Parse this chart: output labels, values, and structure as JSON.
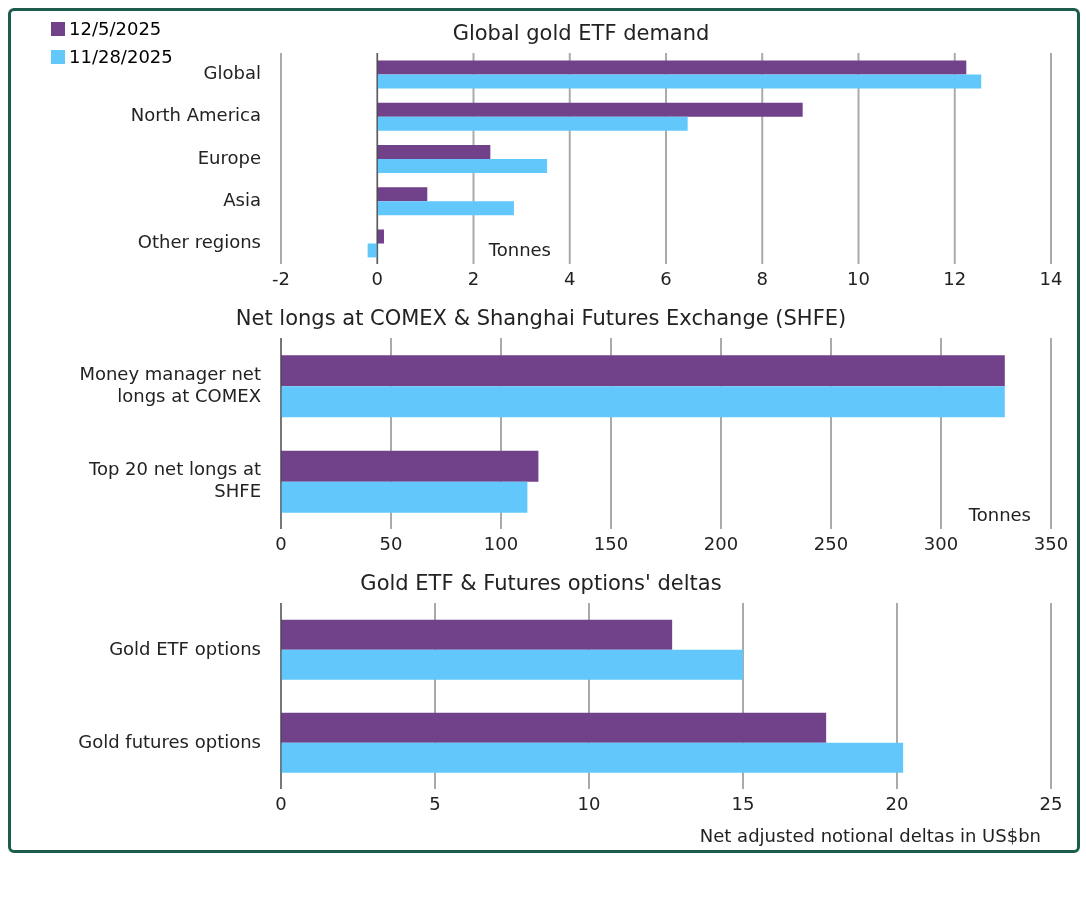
{
  "chart_data": [
    {
      "type": "bar",
      "orientation": "horizontal",
      "title": "Global gold ETF demand",
      "categories": [
        "Global",
        "North America",
        "Europe",
        "Asia",
        "Other regions"
      ],
      "series": [
        {
          "name": "12/5/2025",
          "color": "#71418a",
          "values": [
            12.24,
            8.84,
            2.35,
            1.04,
            0.14
          ]
        },
        {
          "name": "11/28/2025",
          "color": "#62c8fc",
          "values": [
            12.55,
            6.45,
            3.53,
            2.84,
            -0.2
          ]
        }
      ],
      "xlim": [
        -2,
        14
      ],
      "xticks": [
        -2,
        0,
        2,
        4,
        6,
        8,
        10,
        12,
        14
      ],
      "grid": "x",
      "legend": "top left",
      "annotations": [
        "Tonnes"
      ]
    },
    {
      "type": "bar",
      "orientation": "horizontal",
      "title": "Net longs at COMEX & Shanghai Futures Exchange (SHFE)",
      "categories": [
        "Money manager net longs at COMEX",
        "Top 20 net longs at SHFE"
      ],
      "series": [
        {
          "color": "#71418a",
          "values": [
            329,
            117
          ]
        },
        {
          "color": "#62c8fc",
          "values": [
            329,
            112
          ]
        }
      ],
      "xlim": [
        0,
        350
      ],
      "xticks": [
        0,
        50,
        100,
        150,
        200,
        250,
        300,
        350
      ],
      "grid": "x",
      "annotations": [
        "Tonnes"
      ]
    },
    {
      "type": "bar",
      "orientation": "horizontal",
      "title": "Gold ETF & Futures options' deltas",
      "categories": [
        "Gold ETF options",
        "Gold futures options"
      ],
      "series": [
        {
          "color": "#71418a",
          "values": [
            12.7,
            17.7
          ]
        },
        {
          "color": "#62c8fc",
          "values": [
            15.0,
            20.2
          ]
        }
      ],
      "xlim": [
        0,
        25
      ],
      "xticks": [
        0,
        5,
        10,
        15,
        20,
        25
      ],
      "grid": "x",
      "xlabel": "Net adjusted notional deltas in US$bn"
    }
  ]
}
